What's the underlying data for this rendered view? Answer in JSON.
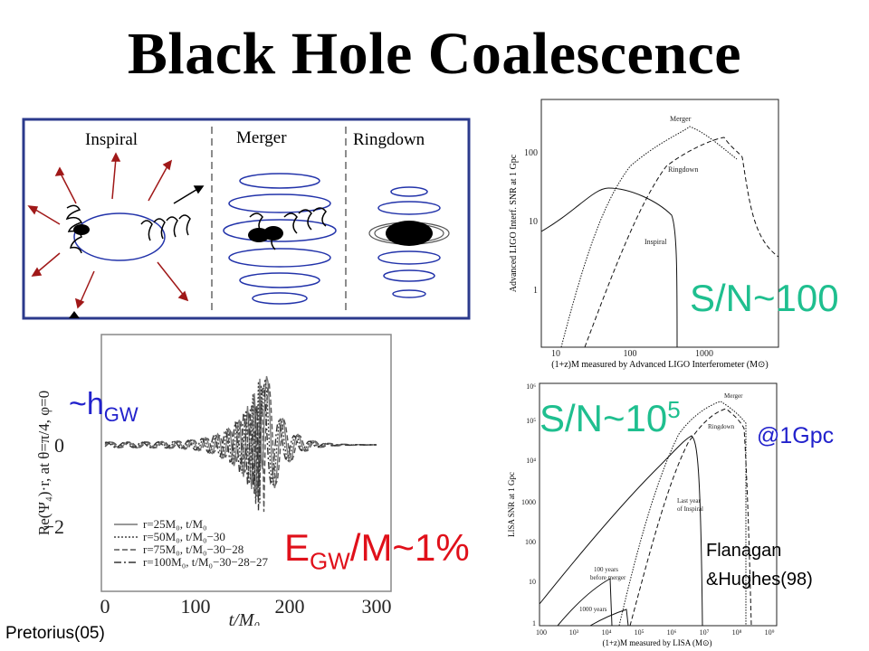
{
  "title": "Black Hole Coalescence",
  "stages": {
    "inspiral": "Inspiral",
    "merger": "Merger",
    "ringdown": "Ringdown"
  },
  "waveform": {
    "ylabel": "Re(Ψ₄)·r, at θ=π/4, φ=0",
    "xlabel": "t/M₀",
    "xticks": [
      "0",
      "100",
      "200",
      "300"
    ],
    "yticks": [
      "0",
      "−2"
    ],
    "legend": [
      "r=25M₀, t/M₀",
      "r=50M₀, t/M₀−30",
      "r=75M₀, t/M₀−30−28",
      "r=100M₀, t/M₀−30−28−27"
    ],
    "annotation_h": "~h",
    "annotation_h_sub": "GW",
    "annotation_e": "E",
    "annotation_e_sub": "GW",
    "annotation_e_rest": "/M~1%"
  },
  "ligo": {
    "ylabel": "Advanced LIGO Interf. SNR at 1 Gpc",
    "xlabel": "(1+z)M measured by Advanced LIGO Interferometer (M⊙)",
    "xticks": [
      "10",
      "100",
      "1000"
    ],
    "yticks": [
      "100",
      "10",
      "1"
    ],
    "curves": {
      "merger": "Merger",
      "ringdown": "Ringdown",
      "inspiral": "Inspiral"
    },
    "snr": "S/N~100"
  },
  "lisa": {
    "ylabel": "LISA SNR at 1 Gpc",
    "xlabel": "(1+z)M measured by LISA (M⊙)",
    "xticks": [
      "100",
      "10³",
      "10⁴",
      "10⁵",
      "10⁶",
      "10⁷",
      "10⁸",
      "10⁹"
    ],
    "yticks": [
      "10⁶",
      "10⁵",
      "10⁴",
      "1000",
      "100",
      "10",
      "1"
    ],
    "curves": {
      "merger": "Merger",
      "ringdown": "Ringdown",
      "last_year": "Last year",
      "last_year2": "of Inspiral",
      "hundred_years": "100 years",
      "hundred_years2": "before merger",
      "thousand_years": "1000 years"
    },
    "snr": "S/N~10",
    "snr_exp": "5",
    "distance": "@1Gpc"
  },
  "credits": {
    "pretorius": "Pretorius(05)",
    "flanagan1": "Flanagan",
    "flanagan2": "&Hughes(98)"
  }
}
